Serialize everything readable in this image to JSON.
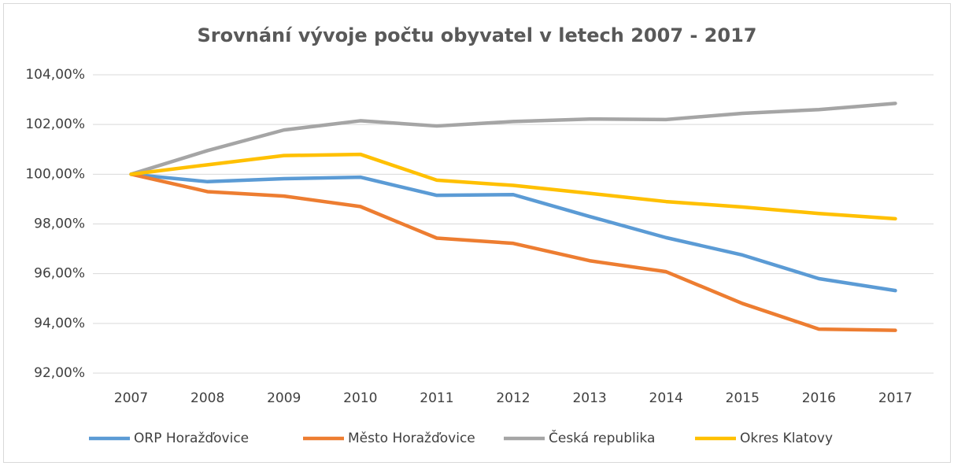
{
  "chart_data": {
    "type": "line",
    "title": "Srovnání vývoje počtu obyvatel v letech 2007 - 2017",
    "categories": [
      "2007",
      "2008",
      "2009",
      "2010",
      "2011",
      "2012",
      "2013",
      "2014",
      "2015",
      "2016",
      "2017"
    ],
    "series": [
      {
        "name": "ORP Horažďovice",
        "color": "#5b9bd5",
        "values": [
          100,
          99.7,
          99.82,
          99.88,
          99.15,
          99.18,
          98.3,
          97.45,
          96.75,
          95.8,
          95.32
        ]
      },
      {
        "name": "Město Horažďovice",
        "color": "#ed7d31",
        "values": [
          100,
          99.3,
          99.12,
          98.7,
          97.43,
          97.22,
          96.52,
          96.08,
          94.8,
          93.77,
          93.72
        ]
      },
      {
        "name": "Česká republika",
        "color": "#a5a5a5",
        "values": [
          100,
          100.95,
          101.78,
          102.15,
          101.94,
          102.12,
          102.22,
          102.2,
          102.45,
          102.6,
          102.85
        ]
      },
      {
        "name": "Okres Klatovy",
        "color": "#ffc000",
        "values": [
          100,
          100.38,
          100.75,
          100.8,
          99.76,
          99.55,
          99.23,
          98.9,
          98.68,
          98.42,
          98.21
        ]
      }
    ],
    "ylim": [
      92,
      104
    ],
    "yticks": [
      {
        "value": 92,
        "label": "92,00%"
      },
      {
        "value": 94,
        "label": "94,00%"
      },
      {
        "value": 96,
        "label": "96,00%"
      },
      {
        "value": 98,
        "label": "98,00%"
      },
      {
        "value": 100,
        "label": "100,00%"
      },
      {
        "value": 102,
        "label": "102,00%"
      },
      {
        "value": 104,
        "label": "104,00%"
      }
    ],
    "grid": true,
    "legend": "bottom"
  }
}
